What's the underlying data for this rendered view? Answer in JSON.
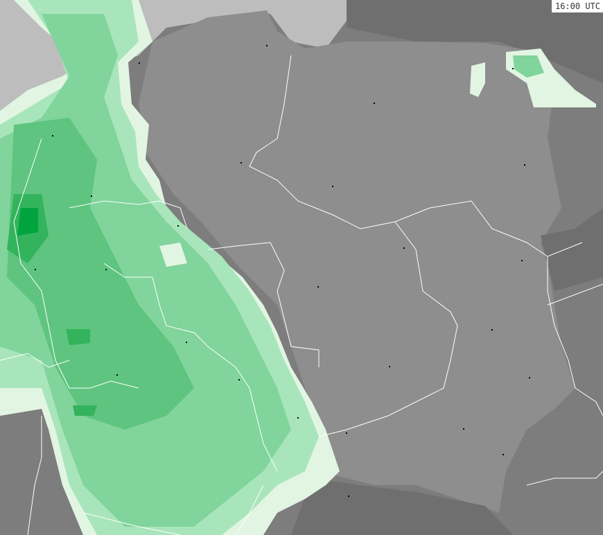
{
  "map": {
    "time_label": "16:00 UTC",
    "layer": "precipitation",
    "colors": {
      "sea": "#bdbdbd",
      "land_outside": "#7d7d7d",
      "land_poland": "#8e8e8e",
      "land_dark": "#6f6f6f",
      "borders": "#ffffff",
      "precip_levels": [
        "#e2f5e3",
        "#a9e5ba",
        "#80d49c",
        "#5ec47f",
        "#33b35c",
        "#00a33d"
      ]
    }
  }
}
